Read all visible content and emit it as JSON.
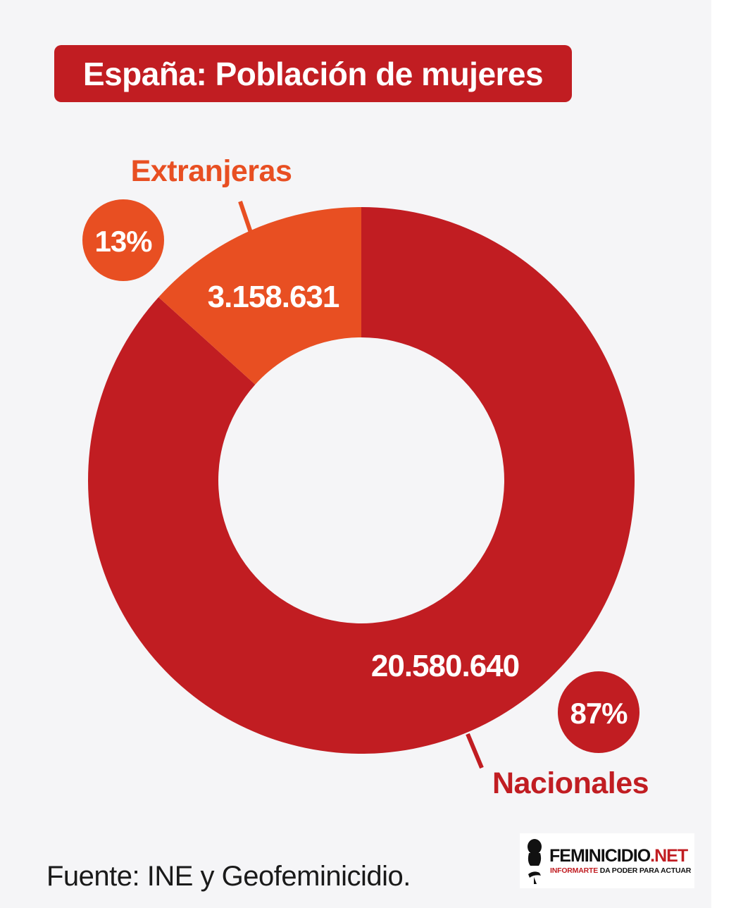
{
  "title": "España: Población de mujeres",
  "colors": {
    "nacionales": "#c11d22",
    "extranjeras": "#e84f22",
    "background": "#f5f5f7"
  },
  "chart_data": {
    "type": "pie",
    "donut": true,
    "title": "España: Población de mujeres",
    "series": [
      {
        "name": "Nacionales",
        "value": 20580640,
        "value_label": "20.580.640",
        "percent_label": "87%",
        "color": "#c11d22"
      },
      {
        "name": "Extranjeras",
        "value": 3158631,
        "value_label": "3.158.631",
        "percent_label": "13%",
        "color": "#e84f22"
      }
    ]
  },
  "footer": {
    "source": "Fuente: INE y Geofeminicidio."
  },
  "logo": {
    "name_main": "FEMINICIDIO",
    "name_suffix": ".NET",
    "tagline_accent": "INFORMARTE",
    "tagline_rest": " DA PODER PARA ACTUAR",
    "icon": "woman-silhouette-icon"
  }
}
